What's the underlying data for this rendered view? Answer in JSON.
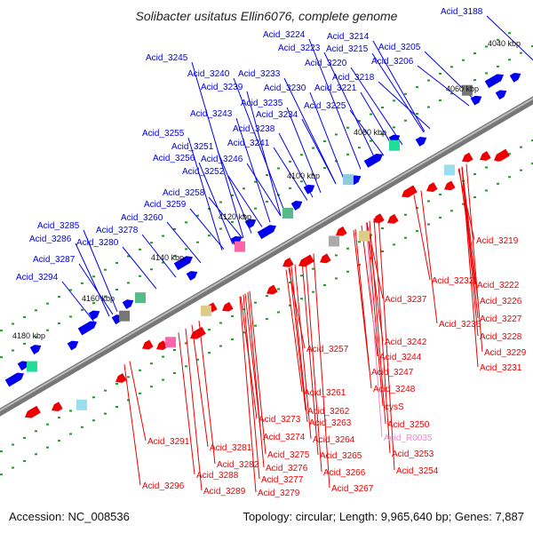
{
  "title": "Solibacter usitatus Ellin6076, complete genome",
  "footer": {
    "accession": "Accession: NC_008536",
    "summary": "Topology: circular; Length: 9,965,640 bp; Genes: 7,887"
  },
  "colors": {
    "forward_label": "#0000ee",
    "reverse_label": "#ee0000",
    "rna_label": "#ee88cc",
    "forward_arrow": "#0000ee",
    "reverse_arrow": "#ee0000",
    "backbone": "#888888",
    "tick_dot": "#229922"
  },
  "ticks": [
    "4040 kbp",
    "4060 kbp",
    "4080 kbp",
    "4100 kbp",
    "4120 kbp",
    "4140 kbp",
    "4160 kbp",
    "4180 kbp"
  ],
  "forward_genes": [
    "Acid_3188",
    "Acid_3224",
    "Acid_3214",
    "Acid_3223",
    "Acid_3215",
    "Acid_3205",
    "Acid_3245",
    "Acid_3220",
    "Acid_3206",
    "Acid_3240",
    "Acid_3233",
    "Acid_3218",
    "Acid_3239",
    "Acid_3230",
    "Acid_3221",
    "Acid_3235",
    "Acid_3225",
    "Acid_3243",
    "Acid_3234",
    "Acid_3238",
    "Acid_3255",
    "Acid_3241",
    "Acid_3251",
    "Acid_3256",
    "Acid_3246",
    "Acid_3252",
    "Acid_3258",
    "Acid_3259",
    "Acid_3260",
    "Acid_3285",
    "Acid_3278",
    "Acid_3286",
    "Acid_3280",
    "Acid_3287",
    "Acid_3294"
  ],
  "reverse_genes": [
    "Acid_3219",
    "Acid_3232",
    "Acid_3222",
    "Acid_3226",
    "Acid_3237",
    "Acid_3227",
    "Acid_3236",
    "Acid_3228",
    "Acid_3242",
    "Acid_3229",
    "Acid_3257",
    "Acid_3244",
    "Acid_3231",
    "Acid_3247",
    "Acid_3248",
    "Acid_3261",
    "Acid_3262",
    "Acid_3263",
    "Acid_3273",
    "Acid_3274",
    "Acid_3264",
    "Acid_3291",
    "Acid_3281",
    "Acid_3275",
    "Acid_3265",
    "Acid_3282",
    "Acid_3276",
    "Acid_3266",
    "Acid_3288",
    "Acid_3277",
    "Acid_3296",
    "Acid_3289",
    "Acid_3279",
    "Acid_3267",
    "cysS",
    "Acid_3250",
    "Acid_3253",
    "Acid_3254"
  ],
  "rna_genes": [
    "Acid_R0035"
  ]
}
